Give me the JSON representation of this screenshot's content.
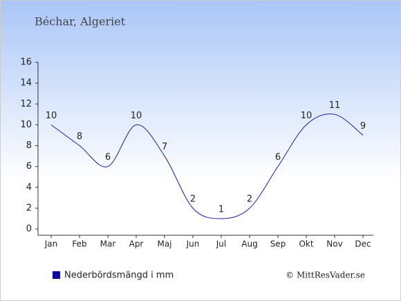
{
  "chart_data": {
    "type": "line",
    "title": "Béchar, Algeriet",
    "categories": [
      "Jan",
      "Feb",
      "Mar",
      "Apr",
      "Maj",
      "Jun",
      "Jul",
      "Aug",
      "Sep",
      "Okt",
      "Nov",
      "Dec"
    ],
    "series": [
      {
        "name": "Nederbördsmängd i mm",
        "color": "#1c1ca8",
        "values": [
          10,
          8,
          6,
          10,
          7,
          2,
          1,
          2,
          6,
          10,
          11,
          9
        ]
      }
    ],
    "ylim": [
      0,
      16
    ],
    "yticks": [
      0,
      2,
      4,
      6,
      8,
      10,
      12,
      14,
      16
    ],
    "credit": "© MittResVader.se"
  }
}
